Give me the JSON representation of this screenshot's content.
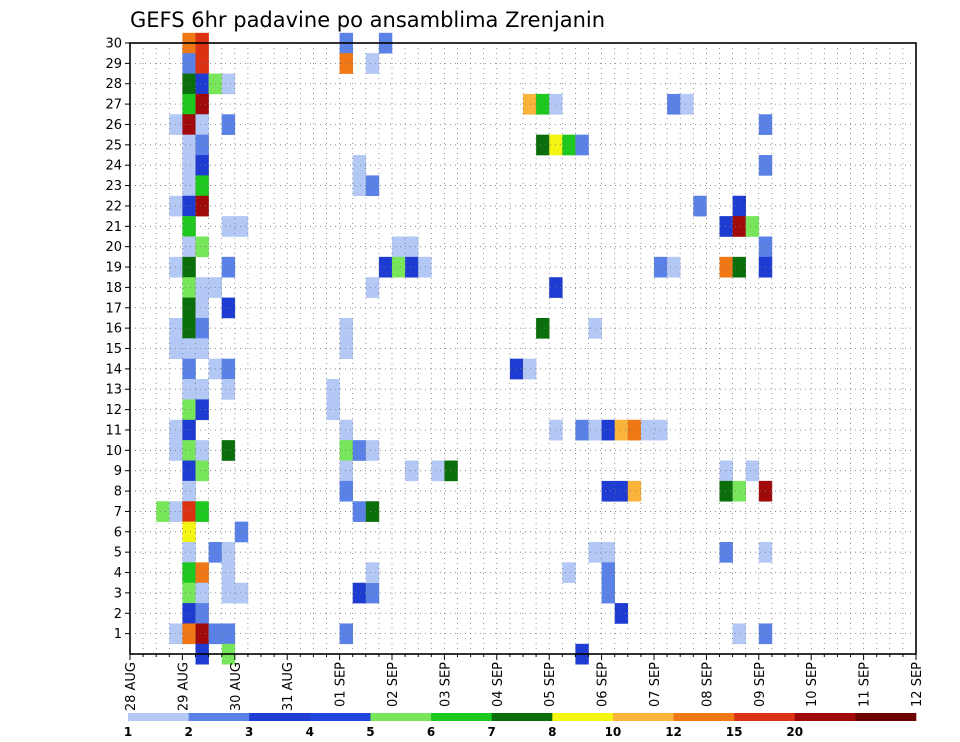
{
  "chart_data": {
    "type": "heatmap",
    "title": "GEFS 6hr padavine po ansamblima Zrenjanin",
    "y_ticks": [
      "1",
      "2",
      "3",
      "4",
      "5",
      "6",
      "7",
      "8",
      "9",
      "10",
      "11",
      "12",
      "13",
      "14",
      "15",
      "16",
      "17",
      "18",
      "19",
      "20",
      "21",
      "22",
      "23",
      "24",
      "25",
      "26",
      "27",
      "28",
      "29",
      "30"
    ],
    "x_ticks": [
      "28 AUG",
      "29 AUG",
      "30 AUG",
      "31 AUG",
      "01 SEP",
      "02 SEP",
      "03 SEP",
      "04 SEP",
      "05 SEP",
      "06 SEP",
      "07 SEP",
      "08 SEP",
      "09 SEP",
      "10 SEP",
      "11 SEP",
      "12 SEP"
    ],
    "colorbar": {
      "labels": [
        "1",
        "2",
        "3",
        "4",
        "5",
        "6",
        "7",
        "8",
        "10",
        "12",
        "15",
        "20"
      ],
      "colors": [
        "#b4c8f5",
        "#5a82e6",
        "#1e3cd2",
        "#1e46dc",
        "#78e65a",
        "#1ec81e",
        "#0a6e0a",
        "#f5f514",
        "#fab43c",
        "#f07814",
        "#dc3214",
        "#a00a0a",
        "#6e0000"
      ]
    },
    "cell_colors": {
      "1": "#b4c8f5",
      "2": "#5a82e6",
      "3": "#1e3cd2",
      "5": "#78e65a",
      "6": "#1ec81e",
      "7": "#0a6e0a",
      "8": "#f5f514",
      "10": "#fab43c",
      "12": "#f07814",
      "15": "#dc3214",
      "20": "#a00a0a"
    },
    "x_domain": [
      0,
      60
    ],
    "y_domain": [
      0,
      30
    ],
    "cells": [
      [
        4,
        30,
        12
      ],
      [
        5,
        30,
        15
      ],
      [
        4,
        29,
        2
      ],
      [
        5,
        29,
        15
      ],
      [
        4,
        28,
        7
      ],
      [
        5,
        28,
        3
      ],
      [
        6,
        28,
        5
      ],
      [
        7,
        28,
        1
      ],
      [
        4,
        27,
        6
      ],
      [
        5,
        27,
        20
      ],
      [
        3,
        26,
        1
      ],
      [
        4,
        26,
        20
      ],
      [
        5,
        26,
        1
      ],
      [
        7,
        26,
        2
      ],
      [
        4,
        25,
        1
      ],
      [
        5,
        25,
        2
      ],
      [
        4,
        24,
        1
      ],
      [
        5,
        24,
        3
      ],
      [
        4,
        23,
        1
      ],
      [
        5,
        23,
        6
      ],
      [
        3,
        22,
        1
      ],
      [
        4,
        22,
        3
      ],
      [
        5,
        22,
        20
      ],
      [
        4,
        21,
        6
      ],
      [
        7,
        21,
        1
      ],
      [
        8,
        21,
        1
      ],
      [
        4,
        20,
        1
      ],
      [
        5,
        20,
        5
      ],
      [
        3,
        19,
        1
      ],
      [
        4,
        19,
        7
      ],
      [
        7,
        19,
        2
      ],
      [
        4,
        18,
        5
      ],
      [
        5,
        18,
        1
      ],
      [
        6,
        18,
        1
      ],
      [
        4,
        17,
        7
      ],
      [
        5,
        17,
        1
      ],
      [
        7,
        17,
        3
      ],
      [
        3,
        16,
        1
      ],
      [
        4,
        16,
        7
      ],
      [
        5,
        16,
        2
      ],
      [
        3,
        15,
        1
      ],
      [
        4,
        15,
        1
      ],
      [
        5,
        15,
        1
      ],
      [
        4,
        14,
        2
      ],
      [
        6,
        14,
        1
      ],
      [
        7,
        14,
        2
      ],
      [
        4,
        13,
        1
      ],
      [
        5,
        13,
        1
      ],
      [
        7,
        13,
        1
      ],
      [
        4,
        12,
        5
      ],
      [
        5,
        12,
        3
      ],
      [
        3,
        11,
        1
      ],
      [
        4,
        11,
        3
      ],
      [
        3,
        10,
        1
      ],
      [
        4,
        10,
        5
      ],
      [
        5,
        10,
        1
      ],
      [
        7,
        10,
        7
      ],
      [
        4,
        9,
        3
      ],
      [
        5,
        9,
        5
      ],
      [
        4,
        8,
        1
      ],
      [
        2,
        7,
        5
      ],
      [
        3,
        7,
        1
      ],
      [
        4,
        7,
        15
      ],
      [
        5,
        7,
        6
      ],
      [
        4,
        6,
        8
      ],
      [
        8,
        6,
        2
      ],
      [
        4,
        5,
        1
      ],
      [
        6,
        5,
        2
      ],
      [
        7,
        5,
        1
      ],
      [
        4,
        4,
        6
      ],
      [
        5,
        4,
        12
      ],
      [
        7,
        4,
        1
      ],
      [
        4,
        3,
        5
      ],
      [
        5,
        3,
        1
      ],
      [
        7,
        3,
        1
      ],
      [
        8,
        3,
        1
      ],
      [
        4,
        2,
        3
      ],
      [
        5,
        2,
        2
      ],
      [
        3,
        1,
        1
      ],
      [
        4,
        1,
        12
      ],
      [
        5,
        1,
        20
      ],
      [
        6,
        1,
        2
      ],
      [
        7,
        1,
        2
      ],
      [
        5,
        0,
        3
      ],
      [
        7,
        0,
        5
      ],
      [
        16,
        30,
        2
      ],
      [
        19,
        30,
        2
      ],
      [
        16,
        29,
        12
      ],
      [
        18,
        29,
        1
      ],
      [
        20,
        20,
        1
      ],
      [
        21,
        20,
        1
      ],
      [
        20,
        19,
        1
      ],
      [
        21,
        19,
        1
      ],
      [
        16,
        16,
        1
      ],
      [
        16,
        15,
        1
      ],
      [
        19,
        19,
        3
      ],
      [
        20,
        19,
        5
      ],
      [
        21,
        19,
        3
      ],
      [
        22,
        19,
        1
      ],
      [
        18,
        18,
        1
      ],
      [
        17,
        24,
        1
      ],
      [
        17,
        23,
        1
      ],
      [
        18,
        23,
        2
      ],
      [
        15,
        13,
        1
      ],
      [
        15,
        12,
        1
      ],
      [
        16,
        11,
        1
      ],
      [
        16,
        10,
        5
      ],
      [
        17,
        10,
        2
      ],
      [
        18,
        10,
        1
      ],
      [
        16,
        9,
        1
      ],
      [
        21,
        9,
        1
      ],
      [
        23,
        9,
        1
      ],
      [
        24,
        9,
        7
      ],
      [
        16,
        8,
        2
      ],
      [
        17,
        7,
        2
      ],
      [
        18,
        7,
        7
      ],
      [
        17,
        3,
        3
      ],
      [
        18,
        3,
        2
      ],
      [
        18,
        4,
        1
      ],
      [
        16,
        1,
        2
      ],
      [
        30,
        27,
        10
      ],
      [
        31,
        27,
        6
      ],
      [
        32,
        27,
        1
      ],
      [
        31,
        25,
        7
      ],
      [
        32,
        25,
        8
      ],
      [
        33,
        25,
        6
      ],
      [
        34,
        25,
        2
      ],
      [
        32,
        18,
        3
      ],
      [
        31,
        16,
        7
      ],
      [
        29,
        14,
        3
      ],
      [
        30,
        14,
        1
      ],
      [
        32,
        11,
        1
      ],
      [
        34,
        11,
        2
      ],
      [
        35,
        11,
        1
      ],
      [
        36,
        11,
        3
      ],
      [
        37,
        11,
        10
      ],
      [
        38,
        11,
        12
      ],
      [
        39,
        11,
        1
      ],
      [
        40,
        11,
        1
      ],
      [
        36,
        8,
        3
      ],
      [
        37,
        8,
        3
      ],
      [
        38,
        8,
        10
      ],
      [
        35,
        5,
        1
      ],
      [
        36,
        5,
        1
      ],
      [
        33,
        4,
        1
      ],
      [
        36,
        4,
        2
      ],
      [
        36,
        3,
        2
      ],
      [
        37,
        2,
        3
      ],
      [
        34,
        0,
        3
      ],
      [
        35,
        16,
        1
      ],
      [
        40,
        19,
        2
      ],
      [
        41,
        19,
        1
      ],
      [
        41,
        27,
        2
      ],
      [
        42,
        27,
        1
      ],
      [
        43,
        22,
        2
      ],
      [
        46,
        22,
        3
      ],
      [
        45,
        21,
        3
      ],
      [
        46,
        21,
        20
      ],
      [
        47,
        21,
        5
      ],
      [
        45,
        19,
        12
      ],
      [
        46,
        19,
        7
      ],
      [
        48,
        19,
        1
      ],
      [
        48,
        26,
        2
      ],
      [
        48,
        24,
        2
      ],
      [
        48,
        20,
        2
      ],
      [
        48,
        19,
        3
      ],
      [
        45,
        9,
        1
      ],
      [
        47,
        9,
        1
      ],
      [
        45,
        8,
        7
      ],
      [
        46,
        8,
        5
      ],
      [
        48,
        8,
        20
      ],
      [
        45,
        5,
        2
      ],
      [
        48,
        5,
        1
      ],
      [
        46,
        1,
        1
      ],
      [
        48,
        1,
        2
      ]
    ]
  }
}
